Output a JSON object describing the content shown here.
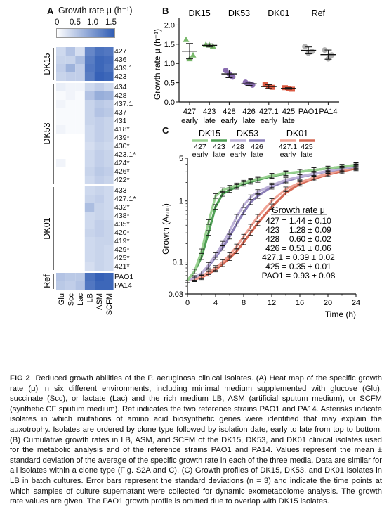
{
  "panelA": {
    "label": "A",
    "title": "Growth rate μ (h⁻¹)",
    "scale_ticks": [
      "0",
      "0.5",
      "1.0",
      "1.5"
    ],
    "scale_range": [
      0,
      1.5
    ],
    "columns": [
      "Glu",
      "Scc",
      "Lac",
      "LB",
      "ASM",
      "SCFM"
    ],
    "groups": [
      {
        "name": "DK15",
        "isolates": [
          "427",
          "436",
          "439.1",
          "423"
        ]
      },
      {
        "name": "DK53",
        "isolates": [
          "434",
          "428",
          "437.1",
          "437",
          "431",
          "418*",
          "439*",
          "430*",
          "423.1*",
          "424*",
          "426*",
          "422*"
        ]
      },
      {
        "name": "DK01",
        "isolates": [
          "433",
          "427.1*",
          "432*",
          "438*",
          "435*",
          "420*",
          "419*",
          "429*",
          "425*",
          "421*"
        ]
      },
      {
        "name": "Ref",
        "isolates": [
          "PAO1",
          "PA14"
        ]
      }
    ],
    "values": [
      [
        0.35,
        0.55,
        0.3,
        1.1,
        1.3,
        1.25
      ],
      [
        0.4,
        0.4,
        0.6,
        1.2,
        1.4,
        1.35
      ],
      [
        0.45,
        0.7,
        0.45,
        1.25,
        1.4,
        1.3
      ],
      [
        0.4,
        0.45,
        0.45,
        1.2,
        1.45,
        1.4
      ],
      [
        0.15,
        0.1,
        0.1,
        0.35,
        0.45,
        0.35
      ],
      [
        0.05,
        0.1,
        0.05,
        0.55,
        0.75,
        0.7
      ],
      [
        0.1,
        0.05,
        0.05,
        0.4,
        0.5,
        0.45
      ],
      [
        0.05,
        0.05,
        0.05,
        0.4,
        0.55,
        0.5
      ],
      [
        0.05,
        0.05,
        0.05,
        0.4,
        0.45,
        0.4
      ],
      [
        0.1,
        0.05,
        0.05,
        0.35,
        0.45,
        0.4
      ],
      [
        0.0,
        0.0,
        0.0,
        0.35,
        0.45,
        0.4
      ],
      [
        0.0,
        0.0,
        0.0,
        0.3,
        0.4,
        0.35
      ],
      [
        0.0,
        0.0,
        0.0,
        0.35,
        0.45,
        0.4
      ],
      [
        0.1,
        0.0,
        0.0,
        0.35,
        0.45,
        0.4
      ],
      [
        0.0,
        0.0,
        0.0,
        0.4,
        0.5,
        0.45
      ],
      [
        0.0,
        0.0,
        0.0,
        0.35,
        0.45,
        0.4
      ],
      [
        0.0,
        0.0,
        0.0,
        0.35,
        0.4,
        0.35
      ],
      [
        0.0,
        0.0,
        0.0,
        0.4,
        0.45,
        0.35
      ],
      [
        0.0,
        0.0,
        0.0,
        0.6,
        0.4,
        0.35
      ],
      [
        0.0,
        0.0,
        0.0,
        0.35,
        0.4,
        0.35
      ],
      [
        0.0,
        0.0,
        0.0,
        0.35,
        0.45,
        0.4
      ],
      [
        0.0,
        0.0,
        0.0,
        0.4,
        0.45,
        0.4
      ],
      [
        0.0,
        0.0,
        0.0,
        0.35,
        0.4,
        0.4
      ],
      [
        0.0,
        0.0,
        0.0,
        0.35,
        0.4,
        0.35
      ],
      [
        0.0,
        0.0,
        0.0,
        0.35,
        0.4,
        0.35
      ],
      [
        0.0,
        0.0,
        0.0,
        0.3,
        0.4,
        0.35
      ],
      [
        0.55,
        0.5,
        0.5,
        1.3,
        1.45,
        1.4
      ],
      [
        0.5,
        0.45,
        0.55,
        1.25,
        1.4,
        1.4
      ]
    ]
  },
  "panelB": {
    "label": "B",
    "ylabel": "Growth rate μ (h⁻¹)",
    "yticks": [
      "0.0",
      "0.5",
      "1.0",
      "1.5",
      "2.0"
    ],
    "ylim": [
      0,
      2.1
    ],
    "group_labels": [
      "DK15",
      "DK53",
      "DK01",
      "Ref"
    ],
    "chart_data": {
      "type": "scatter",
      "categories": [
        {
          "name": "427",
          "sub": "early"
        },
        {
          "name": "423",
          "sub": "late"
        },
        {
          "name": "428",
          "sub": "early"
        },
        {
          "name": "426",
          "sub": "late"
        },
        {
          "name": "427.1",
          "sub": "early"
        },
        {
          "name": "425",
          "sub": "late"
        },
        {
          "name": "PAO1",
          "sub": ""
        },
        {
          "name": "PA14",
          "sub": ""
        }
      ],
      "means": [
        1.32,
        1.47,
        0.73,
        0.47,
        0.4,
        0.35,
        1.34,
        1.23
      ],
      "sd": [
        0.2,
        0.04,
        0.1,
        0.04,
        0.05,
        0.02,
        0.09,
        0.12
      ],
      "points": [
        [
          1.62,
          1.22,
          1.12
        ],
        [
          1.49,
          1.45,
          1.48
        ],
        [
          0.82,
          0.65,
          0.73
        ],
        [
          0.51,
          0.44,
          0.47
        ],
        [
          0.45,
          0.38,
          0.4
        ],
        [
          0.37,
          0.33,
          0.35
        ],
        [
          1.44,
          1.31,
          1.27
        ],
        [
          1.35,
          1.22,
          1.12
        ]
      ]
    },
    "colors": {
      "dk15": "#78b86a",
      "dk53": "#8a6db0",
      "dk01": "#dc5a42",
      "ref": "#b2b2b2"
    }
  },
  "panelC": {
    "label": "C",
    "legend_groups": [
      "DK15",
      "DK53",
      "DK01"
    ],
    "legend_items": [
      {
        "name": "427",
        "sub": "early",
        "color": "#98d090"
      },
      {
        "name": "423",
        "sub": "late",
        "color": "#4f9f54"
      },
      {
        "name": "428",
        "sub": "early",
        "color": "#beb2d8"
      },
      {
        "name": "426",
        "sub": "late",
        "color": "#8c7fb8"
      },
      {
        "name": "427.1",
        "sub": "early",
        "color": "#f0a294"
      },
      {
        "name": "425",
        "sub": "late",
        "color": "#d66a56"
      }
    ],
    "ylabel": "Growth (A₆₀₀)",
    "xlabel": "Time (h)",
    "xticks": [
      "0",
      "4",
      "8",
      "12",
      "16",
      "20",
      "24"
    ],
    "yticks": [
      "0.03",
      "0.1",
      "1",
      "5"
    ],
    "box_title": "Growth rate μ",
    "box_lines": [
      "427 = 1.44 ± 0.10",
      "423 = 1.28 ± 0.09",
      "428 = 0.60 ± 0.02",
      "426 = 0.51 ± 0.06",
      "427.1 = 0.39 ± 0.02",
      "425 = 0.35 ± 0.01",
      "PAO1 = 0.93 ± 0.08"
    ],
    "chart_data": {
      "type": "line",
      "yscale": "log",
      "xlim": [
        0,
        24
      ],
      "ylim": [
        0.03,
        5
      ],
      "series": [
        {
          "name": "427 early",
          "x": [
            0,
            1,
            2,
            3,
            4,
            5,
            6,
            7,
            8,
            9,
            10,
            12,
            14,
            16,
            18,
            20,
            22,
            24
          ],
          "y": [
            0.05,
            0.07,
            0.15,
            0.45,
            1.2,
            1.5,
            1.65,
            1.8,
            2.0,
            2.15,
            2.3,
            2.6,
            2.85,
            3.0,
            3.2,
            3.4,
            3.65,
            3.9
          ]
        },
        {
          "name": "423 late",
          "x": [
            0,
            1,
            2,
            3,
            4,
            5,
            6,
            7,
            8,
            9,
            10,
            12,
            14,
            16,
            18,
            20,
            22,
            24
          ],
          "y": [
            0.05,
            0.07,
            0.12,
            0.3,
            0.8,
            1.3,
            1.5,
            1.7,
            1.9,
            2.05,
            2.2,
            2.55,
            2.8,
            3.0,
            3.2,
            3.4,
            3.6,
            3.85
          ]
        },
        {
          "name": "428 early",
          "x": [
            0,
            1,
            2,
            3,
            4,
            5,
            6,
            7,
            8,
            9,
            10,
            12,
            14,
            16,
            18,
            20,
            22,
            24
          ],
          "y": [
            0.05,
            0.055,
            0.065,
            0.09,
            0.13,
            0.2,
            0.32,
            0.55,
            0.85,
            1.15,
            1.4,
            1.8,
            2.2,
            2.5,
            2.8,
            3.1,
            3.4,
            3.7
          ]
        },
        {
          "name": "426 late",
          "x": [
            0,
            1,
            2,
            3,
            4,
            5,
            6,
            7,
            8,
            9,
            10,
            12,
            14,
            16,
            18,
            20,
            22,
            24
          ],
          "y": [
            0.05,
            0.055,
            0.065,
            0.085,
            0.12,
            0.17,
            0.26,
            0.42,
            0.65,
            0.95,
            1.2,
            1.7,
            2.1,
            2.45,
            2.75,
            3.05,
            3.35,
            3.65
          ]
        },
        {
          "name": "427.1 early",
          "x": [
            0,
            1,
            2,
            3,
            4,
            5,
            6,
            7,
            8,
            9,
            10,
            12,
            14,
            16,
            18,
            20,
            22,
            24
          ],
          "y": [
            0.05,
            0.052,
            0.058,
            0.068,
            0.08,
            0.1,
            0.13,
            0.18,
            0.26,
            0.38,
            0.55,
            1.0,
            1.55,
            2.0,
            2.4,
            2.8,
            3.2,
            3.5
          ]
        },
        {
          "name": "425 late",
          "x": [
            0,
            1,
            2,
            3,
            4,
            5,
            6,
            7,
            8,
            9,
            10,
            12,
            14,
            16,
            18,
            20,
            22,
            24
          ],
          "y": [
            0.05,
            0.052,
            0.056,
            0.064,
            0.075,
            0.092,
            0.115,
            0.15,
            0.21,
            0.3,
            0.43,
            0.8,
            1.35,
            1.9,
            2.3,
            2.7,
            3.05,
            3.4
          ]
        }
      ],
      "error_rel": 0.09
    }
  },
  "caption": {
    "fig_label": "FIG 2",
    "text": "Reduced growth abilities of the P. aeruginosa clinical isolates. (A) Heat map of the specific growth rate (μ) in six different environments, including minimal medium supplemented with glucose (Glu), succinate (Scc), or lactate (Lac) and the rich medium LB, ASM (artificial sputum medium), or SCFM (synthetic CF sputum medium). Ref indicates the two reference strains PAO1 and PA14. Asterisks indicate isolates in which mutations of amino acid biosynthetic genes were identified that may explain the auxotrophy. Isolates are ordered by clone type followed by isolation date, early to late from top to bottom. (B) Cumulative growth rates in LB, ASM, and SCFM of the DK15, DK53, and DK01 clinical isolates used for the metabolic analysis and of the reference strains PAO1 and PA14. Values represent the mean ± standard deviation of the average of the specific growth rate in each of the three media. Data are similar for all isolates within a clone type (Fig. S2A and C). (C) Growth profiles of DK15, DK53, and DK01 isolates in LB in batch cultures. Error bars represent the standard deviations (n = 3) and indicate the time points at which samples of culture supernatant were collected for dynamic exometabolome analysis. The growth rate values are given. The PAO1 growth profile is omitted due to overlap with DK15 isolates."
  }
}
